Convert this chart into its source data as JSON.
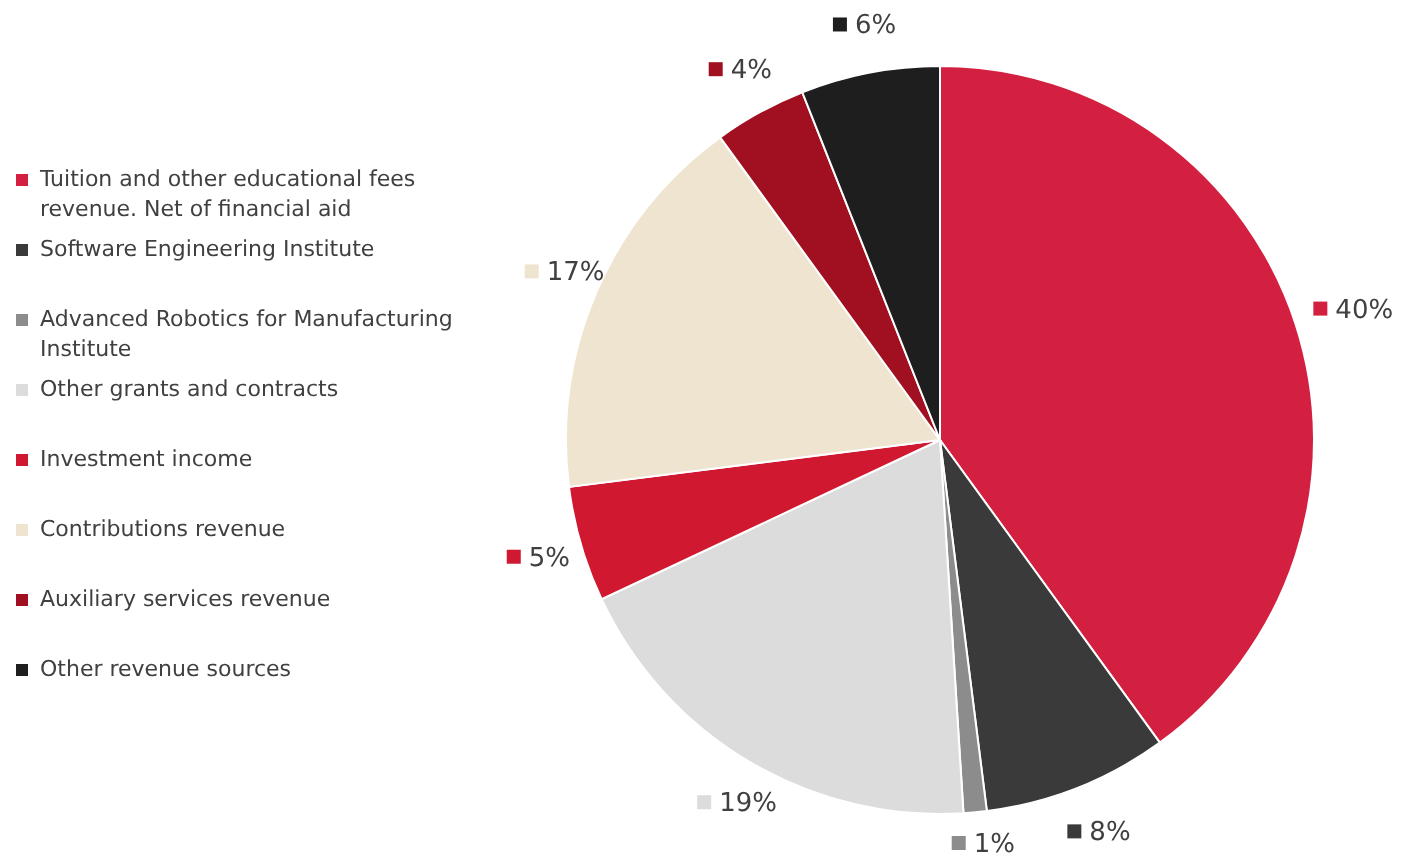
{
  "chart_data": {
    "type": "pie",
    "categories": [
      "Tuition and other educational fees revenue. Net of financial aid",
      "Software Engineering Institute",
      "Advanced Robotics for Manufacturing Institute",
      "Other grants and contracts",
      "Investment income",
      "Contributions revenue",
      "Auxiliary services revenue",
      "Other revenue sources"
    ],
    "values": [
      40,
      8,
      1,
      19,
      5,
      17,
      4,
      6
    ],
    "colors": [
      "#d42040",
      "#3a3a3a",
      "#8c8c8c",
      "#dcdcdc",
      "#d01830",
      "#efe4d0",
      "#a01020",
      "#1e1e1e"
    ],
    "value_labels": [
      "40%",
      "8%",
      "1%",
      "19%",
      "5%",
      "17%",
      "4%",
      "6%"
    ],
    "legend": "left"
  }
}
